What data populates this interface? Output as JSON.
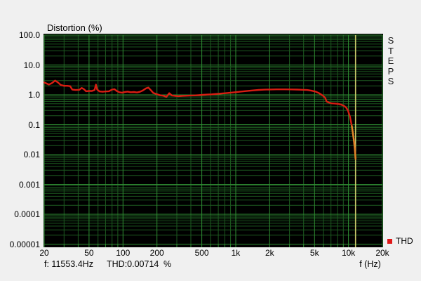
{
  "app_name": "STEPS",
  "title": "Distortion (%)",
  "side_label": "STEPS",
  "legend": {
    "label": "THD"
  },
  "status": {
    "freq": "f: 11553.4Hz",
    "thd": "THD:0.00714",
    "unit": "%"
  },
  "x_axis": {
    "unit_label": "f (Hz)",
    "ticks": [
      {
        "f": 20,
        "label": "20"
      },
      {
        "f": 50,
        "label": "50"
      },
      {
        "f": 100,
        "label": "100"
      },
      {
        "f": 200,
        "label": "200"
      },
      {
        "f": 500,
        "label": "500"
      },
      {
        "f": 1000,
        "label": "1k"
      },
      {
        "f": 2000,
        "label": "2k"
      },
      {
        "f": 5000,
        "label": "5k"
      },
      {
        "f": 10000,
        "label": "10k"
      },
      {
        "f": 20000,
        "label": "20k"
      }
    ]
  },
  "y_axis": {
    "ticks": [
      {
        "v": 100,
        "label": "100.0"
      },
      {
        "v": 10,
        "label": "10.0"
      },
      {
        "v": 1,
        "label": "1.0"
      },
      {
        "v": 0.1,
        "label": "0.1"
      },
      {
        "v": 0.01,
        "label": "0.01"
      },
      {
        "v": 0.001,
        "label": "0.001"
      },
      {
        "v": 0.0001,
        "label": "0.0001"
      },
      {
        "v": 1e-05,
        "label": "0.00001"
      }
    ]
  },
  "colors": {
    "background": "#f0f0f0",
    "plot_background": "#000000",
    "grid_major": "#2f8f33",
    "grid_minor": "#1d5a20",
    "tick": "#2f8f33",
    "curve": "#d81e12",
    "curve_tip": "#e08428",
    "cursor": "#c9c86a",
    "legend_swatch": "#e01818",
    "text": "#000000"
  },
  "chart_data": {
    "type": "line",
    "title": "Distortion (%)",
    "xlabel": "f (Hz)",
    "ylabel": "Distortion (%)",
    "x_scale": "log",
    "y_scale": "log",
    "xlim": [
      20,
      20000
    ],
    "ylim": [
      1e-05,
      100
    ],
    "grid": true,
    "legend_position": "bottom-right",
    "cursor": {
      "f": 11553.4,
      "thd_percent": 0.00714,
      "tip_from_f": 10700
    },
    "series": [
      {
        "name": "THD",
        "points": [
          [
            20,
            2.6
          ],
          [
            22,
            2.2
          ],
          [
            23.5,
            2.5
          ],
          [
            25,
            3.0
          ],
          [
            26.5,
            2.6
          ],
          [
            28,
            2.15
          ],
          [
            30,
            2.0
          ],
          [
            32,
            2.0
          ],
          [
            34,
            1.95
          ],
          [
            35.5,
            1.5
          ],
          [
            38,
            1.45
          ],
          [
            41,
            1.48
          ],
          [
            43,
            1.7
          ],
          [
            45,
            1.55
          ],
          [
            47,
            1.32
          ],
          [
            50,
            1.35
          ],
          [
            53,
            1.35
          ],
          [
            56,
            1.45
          ],
          [
            57.5,
            2.2
          ],
          [
            59,
            1.5
          ],
          [
            62,
            1.3
          ],
          [
            66,
            1.27
          ],
          [
            70,
            1.3
          ],
          [
            75,
            1.32
          ],
          [
            80,
            1.5
          ],
          [
            84,
            1.55
          ],
          [
            88,
            1.35
          ],
          [
            93,
            1.22
          ],
          [
            98,
            1.18
          ],
          [
            104,
            1.25
          ],
          [
            110,
            1.28
          ],
          [
            117,
            1.22
          ],
          [
            125,
            1.24
          ],
          [
            133,
            1.2
          ],
          [
            141,
            1.26
          ],
          [
            150,
            1.4
          ],
          [
            160,
            1.65
          ],
          [
            168,
            1.75
          ],
          [
            176,
            1.45
          ],
          [
            186,
            1.15
          ],
          [
            200,
            1.05
          ],
          [
            214,
            0.97
          ],
          [
            228,
            0.93
          ],
          [
            243,
            0.86
          ],
          [
            257,
            1.13
          ],
          [
            272,
            0.95
          ],
          [
            290,
            0.92
          ],
          [
            310,
            0.9
          ],
          [
            335,
            0.92
          ],
          [
            365,
            0.93
          ],
          [
            395,
            0.95
          ],
          [
            430,
            0.96
          ],
          [
            470,
            0.98
          ],
          [
            510,
            1.0
          ],
          [
            560,
            1.02
          ],
          [
            610,
            1.04
          ],
          [
            660,
            1.07
          ],
          [
            710,
            1.09
          ],
          [
            770,
            1.12
          ],
          [
            840,
            1.15
          ],
          [
            920,
            1.19
          ],
          [
            1000,
            1.23
          ],
          [
            1100,
            1.28
          ],
          [
            1250,
            1.34
          ],
          [
            1400,
            1.4
          ],
          [
            1600,
            1.46
          ],
          [
            1800,
            1.49
          ],
          [
            2000,
            1.51
          ],
          [
            2300,
            1.53
          ],
          [
            2700,
            1.53
          ],
          [
            3100,
            1.52
          ],
          [
            3500,
            1.5
          ],
          [
            3900,
            1.48
          ],
          [
            4300,
            1.45
          ],
          [
            4700,
            1.38
          ],
          [
            5100,
            1.28
          ],
          [
            5500,
            1.13
          ],
          [
            5900,
            0.95
          ],
          [
            6200,
            0.8
          ],
          [
            6400,
            0.6
          ],
          [
            6700,
            0.55
          ],
          [
            7100,
            0.52
          ],
          [
            7600,
            0.51
          ],
          [
            8100,
            0.5
          ],
          [
            8600,
            0.47
          ],
          [
            9100,
            0.43
          ],
          [
            9500,
            0.38
          ],
          [
            9900,
            0.3
          ],
          [
            10300,
            0.19
          ],
          [
            10700,
            0.09
          ],
          [
            11000,
            0.045
          ],
          [
            11200,
            0.028
          ],
          [
            11350,
            0.017
          ],
          [
            11480,
            0.01
          ],
          [
            11553.4,
            0.00714
          ]
        ]
      }
    ]
  }
}
